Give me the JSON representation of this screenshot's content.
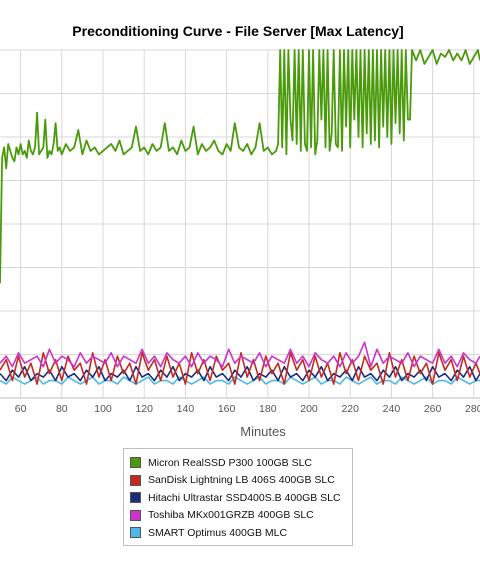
{
  "chart_data": {
    "type": "line",
    "title": "Preconditioning Curve - File Server [Max Latency]",
    "xlabel": "Minutes",
    "ylabel": "",
    "xlim": [
      50,
      283
    ],
    "ylim": [
      0,
      100
    ],
    "xticks": [
      60,
      80,
      100,
      120,
      140,
      160,
      180,
      200,
      220,
      240,
      260,
      280
    ],
    "grid": true,
    "legend_position": "bottom-center",
    "series": [
      {
        "name": "Micron RealSSD P300 100GB SLC",
        "color": "#4a9a0b",
        "x": [
          50,
          51,
          52,
          53,
          54,
          55,
          56,
          57,
          58,
          59,
          60,
          61,
          62,
          63,
          64,
          65,
          66,
          67,
          68,
          69,
          70,
          71,
          72,
          73,
          74,
          75,
          76,
          77,
          78,
          79,
          80,
          82,
          84,
          86,
          88,
          90,
          92,
          94,
          96,
          98,
          100,
          102,
          104,
          106,
          108,
          110,
          112,
          114,
          116,
          118,
          120,
          122,
          124,
          126,
          128,
          130,
          132,
          134,
          136,
          138,
          140,
          142,
          144,
          146,
          148,
          150,
          152,
          154,
          156,
          158,
          160,
          162,
          164,
          166,
          168,
          170,
          172,
          174,
          176,
          178,
          180,
          182,
          184,
          185,
          186,
          187,
          188,
          189,
          190,
          191,
          192,
          193,
          194,
          195,
          196,
          197,
          198,
          199,
          200,
          201,
          202,
          203,
          204,
          205,
          206,
          207,
          208,
          209,
          210,
          211,
          212,
          213,
          214,
          215,
          216,
          217,
          218,
          219,
          220,
          221,
          222,
          223,
          224,
          225,
          226,
          227,
          228,
          229,
          230,
          231,
          232,
          233,
          234,
          235,
          236,
          237,
          238,
          239,
          240,
          241,
          242,
          243,
          244,
          245,
          246,
          247,
          248,
          249,
          250,
          252,
          254,
          256,
          258,
          260,
          262,
          264,
          266,
          268,
          270,
          272,
          274,
          276,
          278,
          280,
          282,
          283
        ],
        "values": [
          33,
          69,
          72,
          66,
          73,
          71,
          69,
          68,
          72,
          70,
          73,
          70,
          71,
          69,
          74,
          71,
          70,
          72,
          82,
          70,
          71,
          72,
          80,
          69,
          71,
          70,
          73,
          79,
          71,
          72,
          70,
          73,
          71,
          72,
          77,
          70,
          74,
          71,
          72,
          70,
          71,
          72,
          73,
          71,
          74,
          70,
          71,
          72,
          78,
          71,
          72,
          70,
          73,
          71,
          72,
          79,
          71,
          72,
          70,
          74,
          71,
          72,
          78,
          70,
          73,
          71,
          72,
          74,
          71,
          70,
          73,
          71,
          79,
          72,
          71,
          73,
          70,
          72,
          79,
          71,
          72,
          70,
          71,
          73,
          100,
          72,
          100,
          70,
          100,
          80,
          74,
          100,
          73,
          100,
          71,
          100,
          73,
          71,
          100,
          72,
          100,
          70,
          74,
          100,
          80,
          100,
          72,
          100,
          71,
          76,
          100,
          73,
          72,
          100,
          71,
          100,
          78,
          100,
          72,
          100,
          80,
          100,
          75,
          100,
          72,
          100,
          76,
          100,
          73,
          100,
          74,
          100,
          72,
          100,
          78,
          100,
          75,
          100,
          73,
          100,
          79,
          100,
          76,
          100,
          74,
          100,
          80,
          80,
          100,
          97,
          100,
          96,
          98,
          100,
          96,
          99,
          98,
          100,
          97,
          99,
          97,
          100,
          96,
          98,
          100,
          97
        ]
      },
      {
        "name": "SanDisk Lightning LB 406S 400GB SLC",
        "color": "#c42a21",
        "x": [
          50,
          53,
          56,
          59,
          62,
          65,
          68,
          71,
          74,
          77,
          80,
          83,
          86,
          89,
          92,
          95,
          98,
          101,
          104,
          107,
          110,
          113,
          116,
          119,
          122,
          125,
          128,
          131,
          134,
          137,
          140,
          143,
          146,
          149,
          152,
          155,
          158,
          161,
          164,
          167,
          170,
          173,
          176,
          179,
          182,
          185,
          188,
          191,
          194,
          197,
          200,
          203,
          206,
          209,
          212,
          215,
          218,
          221,
          224,
          227,
          230,
          233,
          236,
          239,
          242,
          245,
          248,
          251,
          254,
          257,
          260,
          263,
          266,
          269,
          272,
          275,
          278,
          281,
          283
        ],
        "values": [
          8,
          11,
          5,
          12,
          6,
          10,
          4,
          13,
          7,
          11,
          5,
          12,
          8,
          10,
          4,
          13,
          6,
          11,
          5,
          12,
          7,
          10,
          4,
          13,
          8,
          11,
          5,
          12,
          6,
          10,
          4,
          13,
          7,
          11,
          5,
          12,
          8,
          10,
          4,
          13,
          6,
          11,
          5,
          12,
          7,
          10,
          4,
          13,
          8,
          11,
          5,
          12,
          6,
          10,
          4,
          13,
          7,
          11,
          5,
          12,
          8,
          10,
          4,
          13,
          6,
          11,
          5,
          12,
          7,
          10,
          4,
          13,
          8,
          11,
          5,
          12,
          6,
          10,
          7
        ]
      },
      {
        "name": "Hitachi Ultrastar SSD400S.B 400GB SLC",
        "color": "#1b2a7a",
        "x": [
          50,
          53,
          56,
          59,
          62,
          65,
          68,
          71,
          74,
          77,
          80,
          83,
          86,
          89,
          92,
          95,
          98,
          101,
          104,
          107,
          110,
          113,
          116,
          119,
          122,
          125,
          128,
          131,
          134,
          137,
          140,
          143,
          146,
          149,
          152,
          155,
          158,
          161,
          164,
          167,
          170,
          173,
          176,
          179,
          182,
          185,
          188,
          191,
          194,
          197,
          200,
          203,
          206,
          209,
          212,
          215,
          218,
          221,
          224,
          227,
          230,
          233,
          236,
          239,
          242,
          245,
          248,
          251,
          254,
          257,
          260,
          263,
          266,
          269,
          272,
          275,
          278,
          281,
          283
        ],
        "values": [
          7,
          5,
          8,
          6,
          9,
          5,
          7,
          6,
          8,
          5,
          9,
          6,
          7,
          5,
          8,
          6,
          9,
          5,
          7,
          6,
          8,
          5,
          9,
          6,
          7,
          5,
          8,
          6,
          9,
          5,
          7,
          6,
          8,
          5,
          9,
          6,
          7,
          5,
          8,
          6,
          9,
          5,
          7,
          6,
          8,
          5,
          9,
          6,
          7,
          5,
          8,
          6,
          9,
          5,
          7,
          6,
          8,
          5,
          9,
          6,
          7,
          5,
          8,
          6,
          9,
          5,
          7,
          6,
          8,
          5,
          9,
          6,
          7,
          5,
          8,
          6,
          9,
          5,
          7
        ]
      },
      {
        "name": "Toshiba MKx001GRZB 400GB SLC",
        "color": "#cc33cc",
        "x": [
          50,
          53,
          56,
          59,
          62,
          65,
          68,
          71,
          74,
          77,
          80,
          83,
          86,
          89,
          92,
          95,
          98,
          101,
          104,
          107,
          110,
          113,
          116,
          119,
          122,
          125,
          128,
          131,
          134,
          137,
          140,
          143,
          146,
          149,
          152,
          155,
          158,
          161,
          164,
          167,
          170,
          173,
          176,
          179,
          182,
          185,
          188,
          191,
          194,
          197,
          200,
          203,
          206,
          209,
          212,
          215,
          218,
          221,
          224,
          227,
          230,
          233,
          236,
          239,
          242,
          245,
          248,
          251,
          254,
          257,
          260,
          263,
          266,
          269,
          272,
          275,
          278,
          281,
          283
        ],
        "values": [
          10,
          12,
          9,
          13,
          10,
          11,
          12,
          9,
          14,
          10,
          12,
          11,
          9,
          13,
          10,
          12,
          11,
          10,
          13,
          9,
          12,
          11,
          10,
          14,
          10,
          12,
          9,
          13,
          11,
          10,
          12,
          9,
          13,
          10,
          12,
          11,
          9,
          14,
          10,
          12,
          11,
          10,
          13,
          9,
          12,
          11,
          10,
          14,
          10,
          12,
          9,
          13,
          11,
          10,
          12,
          9,
          13,
          10,
          12,
          16,
          9,
          14,
          10,
          12,
          11,
          10,
          13,
          9,
          12,
          11,
          10,
          14,
          10,
          12,
          9,
          13,
          11,
          10,
          12
        ]
      },
      {
        "name": "SMART Optimus 400GB MLC",
        "color": "#4cb8e8",
        "x": [
          50,
          53,
          56,
          59,
          62,
          65,
          68,
          71,
          74,
          77,
          80,
          83,
          86,
          89,
          92,
          95,
          98,
          101,
          104,
          107,
          110,
          113,
          116,
          119,
          122,
          125,
          128,
          131,
          134,
          137,
          140,
          143,
          146,
          149,
          152,
          155,
          158,
          161,
          164,
          167,
          170,
          173,
          176,
          179,
          182,
          185,
          188,
          191,
          194,
          197,
          200,
          203,
          206,
          209,
          212,
          215,
          218,
          221,
          224,
          227,
          230,
          233,
          236,
          239,
          242,
          245,
          248,
          251,
          254,
          257,
          260,
          263,
          266,
          269,
          272,
          275,
          278,
          281,
          283
        ],
        "values": [
          5,
          4,
          6,
          5,
          4,
          5,
          6,
          4,
          5,
          5,
          4,
          6,
          5,
          4,
          5,
          6,
          4,
          5,
          5,
          4,
          6,
          5,
          4,
          5,
          6,
          4,
          5,
          5,
          4,
          6,
          5,
          4,
          5,
          6,
          4,
          5,
          5,
          4,
          6,
          5,
          4,
          5,
          6,
          4,
          5,
          5,
          4,
          6,
          5,
          4,
          5,
          6,
          4,
          5,
          5,
          4,
          6,
          5,
          4,
          5,
          6,
          4,
          5,
          5,
          4,
          6,
          5,
          4,
          5,
          6,
          4,
          5,
          5,
          4,
          6,
          5,
          4,
          5,
          5
        ]
      }
    ]
  }
}
